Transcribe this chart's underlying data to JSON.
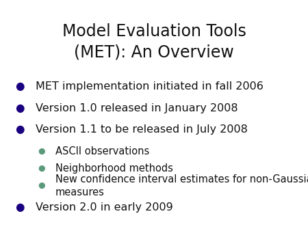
{
  "title": "Model Evaluation Tools\n(MET): An Overview",
  "title_fontsize": 17,
  "title_color": "#111111",
  "background_color": "#ffffff",
  "bullet_color": "#1a0080",
  "sub_bullet_color": "#5a9a7a",
  "bullet_items": [
    {
      "text": "MET implementation initiated in fall 2006",
      "level": 0
    },
    {
      "text": "Version 1.0 released in January 2008",
      "level": 0
    },
    {
      "text": "Version 1.1 to be released in July 2008",
      "level": 0
    },
    {
      "text": "ASCII observations",
      "level": 1
    },
    {
      "text": "Neighborhood methods",
      "level": 1
    },
    {
      "text": "New confidence interval estimates for non-Gaussian\nmeasures",
      "level": 1
    },
    {
      "text": "Version 2.0 in early 2009",
      "level": 0
    }
  ],
  "main_fontsize": 11.5,
  "sub_fontsize": 10.5,
  "text_color": "#111111",
  "fig_width": 4.5,
  "fig_height": 3.38,
  "dpi": 100
}
